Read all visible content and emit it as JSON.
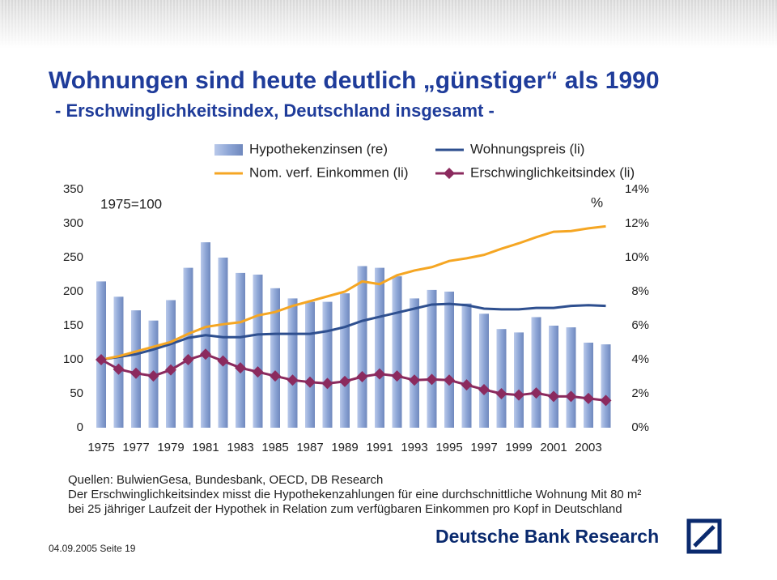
{
  "header": {
    "title": "Wohnungen sind heute deutlich „günstiger“ als 1990",
    "subtitle": "- Erschwinglichkeitsindex, Deutschland insgesamt -"
  },
  "chart_data": {
    "type": "bar-line",
    "categories": [
      "1975",
      null,
      "1977",
      null,
      "1979",
      null,
      "1981",
      null,
      "1983",
      null,
      "1985",
      null,
      "1987",
      null,
      "1989",
      null,
      "1991",
      null,
      "1993",
      null,
      "1995",
      null,
      "1997",
      null,
      "1999",
      null,
      "2001",
      null,
      "2003",
      null
    ],
    "series": [
      {
        "name": "Hypothekenzinsen (re)",
        "kind": "bar",
        "axis": "y2",
        "color": "#8ea6d6",
        "values": [
          8.6,
          7.7,
          6.9,
          6.3,
          7.5,
          9.4,
          10.9,
          10.0,
          9.1,
          9.0,
          8.2,
          7.6,
          7.4,
          7.4,
          7.9,
          9.5,
          9.4,
          8.9,
          7.6,
          8.1,
          8.0,
          7.3,
          6.7,
          5.8,
          5.6,
          6.5,
          6.0,
          5.9,
          5.0,
          4.9
        ]
      },
      {
        "name": "Wohnungspreis (li)",
        "kind": "line",
        "color": "#2e4f8f",
        "values": [
          100,
          104,
          108,
          115,
          123,
          132,
          136,
          133,
          133,
          137,
          138,
          138,
          138,
          142,
          148,
          157,
          163,
          169,
          175,
          181,
          182,
          180,
          175,
          174,
          174,
          176,
          176,
          179,
          180,
          179
        ]
      },
      {
        "name": "Nom. verf. Einkommen (li)",
        "kind": "line",
        "color": "#f5a623",
        "values": [
          100,
          105,
          112,
          119,
          126,
          138,
          148,
          152,
          155,
          165,
          170,
          179,
          186,
          193,
          200,
          215,
          211,
          224,
          231,
          236,
          245,
          249,
          254,
          263,
          271,
          280,
          288,
          289,
          293,
          296
        ]
      },
      {
        "name": "Erschwinglichkeitsindex (li)",
        "kind": "line",
        "marker": "diamond",
        "color": "#8b2a5e",
        "values": [
          100,
          86,
          80,
          76,
          85,
          100,
          108,
          98,
          88,
          82,
          76,
          70,
          67,
          65,
          68,
          75,
          79,
          76,
          70,
          71,
          70,
          63,
          56,
          50,
          48,
          51,
          46,
          46,
          43,
          40
        ]
      }
    ],
    "ylim": [
      0,
      350
    ],
    "yticks": [
      0,
      50,
      100,
      150,
      200,
      250,
      300,
      350
    ],
    "y2lim": [
      0,
      14
    ],
    "y2ticks": [
      {
        "value": 0,
        "label": "0%"
      },
      {
        "value": 2,
        "label": "2%"
      },
      {
        "value": 4,
        "label": "4%"
      },
      {
        "value": 6,
        "label": "6%"
      },
      {
        "value": 8,
        "label": "8%"
      },
      {
        "value": 10,
        "label": "10%"
      },
      {
        "value": 12,
        "label": "12%"
      },
      {
        "value": 14,
        "label": "14%"
      }
    ],
    "annotations": [
      "1975=100",
      "%"
    ],
    "grid": false
  },
  "sources": [
    "Quellen: BulwienGesa, Bundesbank, OECD, DB Research",
    "Der Erschwinglichkeitsindex misst die Hypothekenzahlungen für eine durchschnittliche Wohnung Mit 80 m²",
    "bei 25 jähriger Laufzeit der Hypothek in Relation zum verfügbaren Einkommen pro Kopf in Deutschland"
  ],
  "footer": {
    "date_page": "04.09.2005 Seite 19",
    "logo": "Deutsche Bank Research"
  }
}
